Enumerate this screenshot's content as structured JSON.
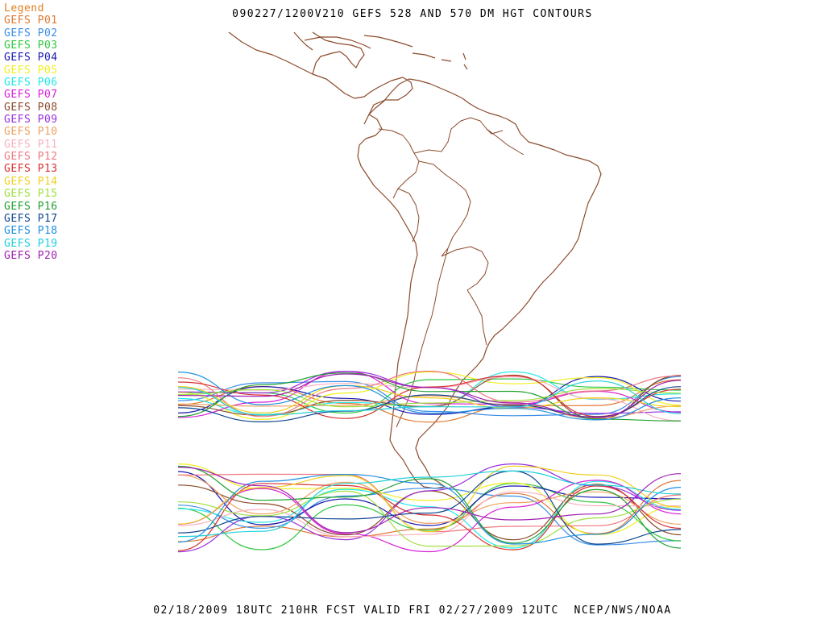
{
  "title": "090227/1200V210 GEFS 528 AND 570 DM HGT CONTOURS",
  "footer": "02/18/2009 18UTC 210HR FCST VALID FRI 02/27/2009 12UTC  NCEP/NWS/NOAA",
  "legend": {
    "heading": "Legend",
    "heading_color": "#e08020",
    "items": [
      {
        "label": "GEFS P01",
        "color": "#e07830"
      },
      {
        "label": "GEFS P02",
        "color": "#3a8ee8"
      },
      {
        "label": "GEFS P03",
        "color": "#30c840"
      },
      {
        "label": "GEFS P04",
        "color": "#1818b0"
      },
      {
        "label": "GEFS P05",
        "color": "#f0f020"
      },
      {
        "label": "GEFS P06",
        "color": "#20e8e8"
      },
      {
        "label": "GEFS P07",
        "color": "#d820d8"
      },
      {
        "label": "GEFS P08",
        "color": "#8a4a2a"
      },
      {
        "label": "GEFS P09",
        "color": "#9a30e0"
      },
      {
        "label": "GEFS P10",
        "color": "#f0a060"
      },
      {
        "label": "GEFS P11",
        "color": "#f8b0c0"
      },
      {
        "label": "GEFS P12",
        "color": "#f07880"
      },
      {
        "label": "GEFS P13",
        "color": "#d83030"
      },
      {
        "label": "GEFS P14",
        "color": "#f0d020"
      },
      {
        "label": "GEFS P15",
        "color": "#a0e040"
      },
      {
        "label": "GEFS P16",
        "color": "#20a030"
      },
      {
        "label": "GEFS P17",
        "color": "#104890"
      },
      {
        "label": "GEFS P18",
        "color": "#2090e0"
      },
      {
        "label": "GEFS P19",
        "color": "#20d0d8"
      },
      {
        "label": "GEFS P20",
        "color": "#a020b0"
      }
    ]
  },
  "map": {
    "coastline_color": "#8b4a2b"
  }
}
